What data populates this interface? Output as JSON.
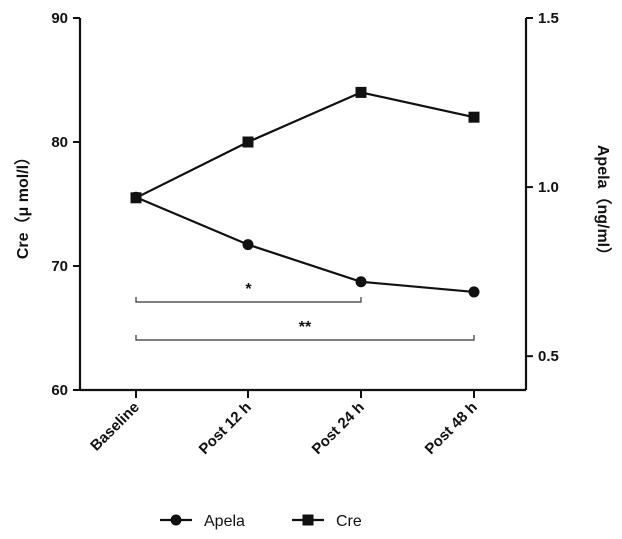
{
  "chart_data": {
    "type": "line",
    "categories": [
      "Baseline",
      "Post 12 h",
      "Post 24 h",
      "Post 48 h"
    ],
    "series": [
      {
        "name": "Apela",
        "axis": "right",
        "marker": "circle",
        "values": [
          0.97,
          0.83,
          0.72,
          0.69
        ]
      },
      {
        "name": "Cre",
        "axis": "left",
        "marker": "square",
        "values": [
          75.5,
          80.0,
          84.0,
          82.0
        ]
      }
    ],
    "y_left": {
      "label": "Cre（μ mol/l）",
      "min": 60,
      "max": 90,
      "ticks": [
        "60",
        "70",
        "80",
        "90"
      ]
    },
    "y_right": {
      "label": "Apela（ng/ml）",
      "min": 0.4,
      "max": 1.5,
      "ticks": [
        "0.5",
        "1.0",
        "1.5"
      ]
    },
    "annotations": [
      {
        "text": "*",
        "from": "Baseline",
        "to": "Post 24 h"
      },
      {
        "text": "**",
        "from": "Baseline",
        "to": "Post 48 h"
      }
    ],
    "legend_placement": "bottom-center",
    "grid": false
  }
}
